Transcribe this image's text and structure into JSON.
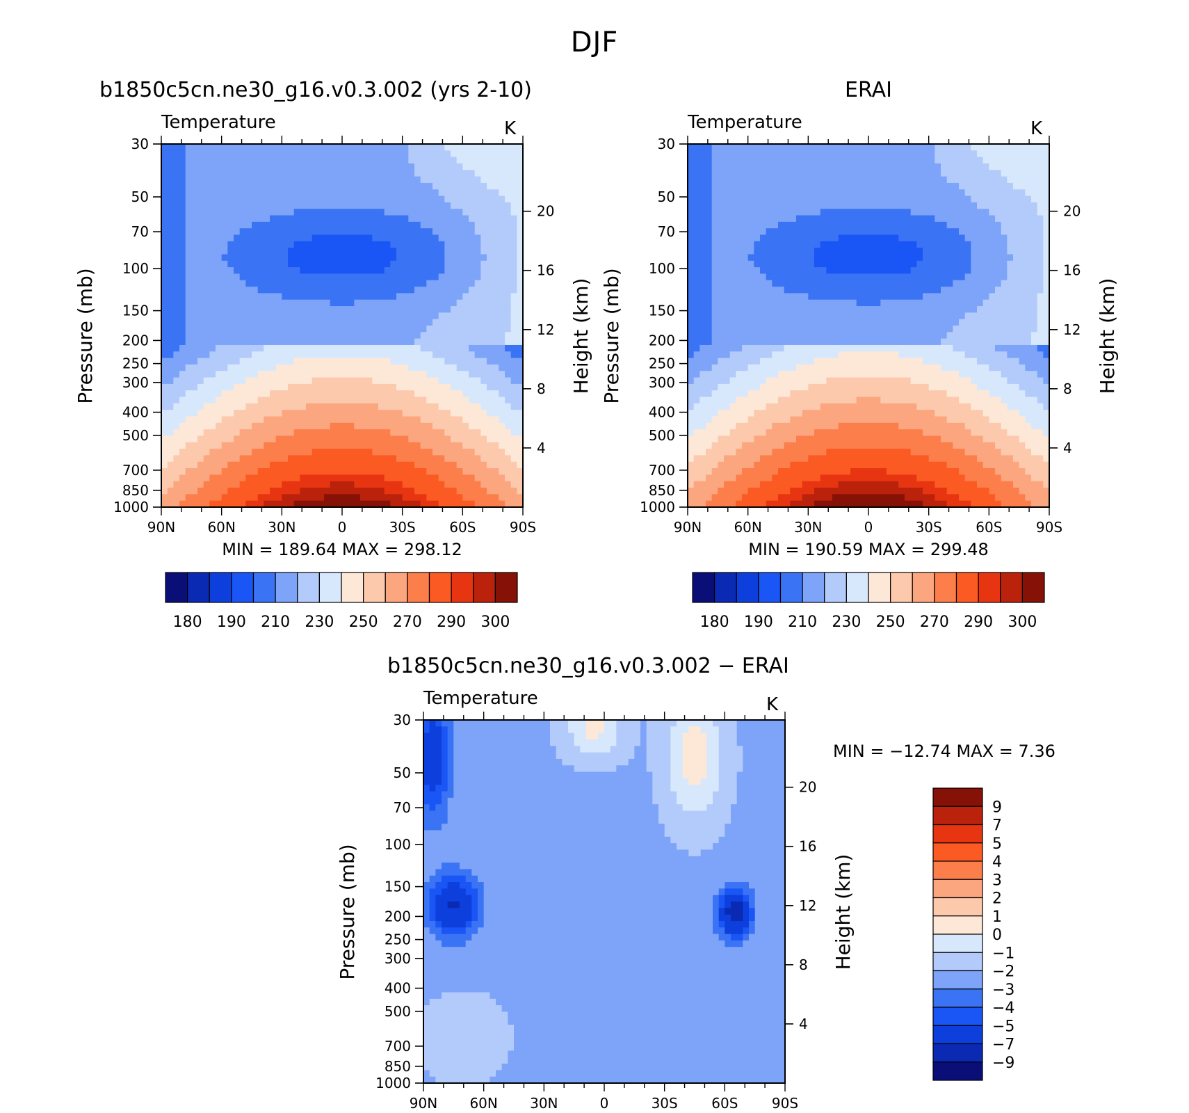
{
  "page_title": "DJF",
  "colors": {
    "model_levels": [
      "#0a0f78",
      "#0a2ab4",
      "#0c3fdc",
      "#1a55f5",
      "#3b73f5",
      "#7da4f9",
      "#b3cbfb",
      "#d8e8fc",
      "#fde8d8",
      "#fcc9ad",
      "#fca680",
      "#fc7e4a",
      "#fb5a23",
      "#e73512",
      "#bb220b",
      "#861106"
    ],
    "diff_levels": [
      "#0a0f78",
      "#0a2ab4",
      "#0c3fdc",
      "#1a55f5",
      "#3b73f5",
      "#7da4f9",
      "#b3cbfb",
      "#d8e8fc",
      "#fde8d8",
      "#fcc9ad",
      "#fca680",
      "#fc7e4a",
      "#fb5a23",
      "#e73512",
      "#bb220b",
      "#861106"
    ]
  },
  "chart_data": [
    {
      "id": "model",
      "type": "contour",
      "title": "b1850c5cn.ne30_g16.v0.3.002 (yrs 2-10)",
      "field_label": "Temperature",
      "units": "K",
      "xlabel": "",
      "ylabel": "Pressure (mb)",
      "ylabel_right": "Height (km)",
      "x_ticks": [
        "90N",
        "60N",
        "30N",
        "0",
        "30S",
        "60S",
        "90S"
      ],
      "y_ticks": [
        30,
        50,
        70,
        100,
        150,
        200,
        250,
        300,
        400,
        500,
        700,
        850,
        1000
      ],
      "y_right_ticks": [
        4,
        8,
        12,
        16,
        20
      ],
      "min_label": "MIN",
      "max_label": "MAX",
      "min": 189.64,
      "max": 298.12,
      "colorbar_ticks": [
        "180",
        "190",
        "210",
        "230",
        "250",
        "270",
        "290",
        "300"
      ]
    },
    {
      "id": "obs",
      "type": "contour",
      "title": "ERAI",
      "field_label": "Temperature",
      "units": "K",
      "xlabel": "",
      "ylabel": "Pressure (mb)",
      "ylabel_right": "Height (km)",
      "x_ticks": [
        "90N",
        "60N",
        "30N",
        "0",
        "30S",
        "60S",
        "90S"
      ],
      "y_ticks": [
        30,
        50,
        70,
        100,
        150,
        200,
        250,
        300,
        400,
        500,
        700,
        850,
        1000
      ],
      "y_right_ticks": [
        4,
        8,
        12,
        16,
        20
      ],
      "min_label": "MIN",
      "max_label": "MAX",
      "min": 190.59,
      "max": 299.48,
      "colorbar_ticks": [
        "180",
        "190",
        "210",
        "230",
        "250",
        "270",
        "290",
        "300"
      ]
    },
    {
      "id": "diff",
      "type": "contour",
      "title": "b1850c5cn.ne30_g16.v0.3.002 − ERAI",
      "field_label": "Temperature",
      "units": "K",
      "xlabel": "",
      "ylabel": "Pressure (mb)",
      "ylabel_right": "Height (km)",
      "x_ticks": [
        "90N",
        "60N",
        "30N",
        "0",
        "30S",
        "60S",
        "90S"
      ],
      "y_ticks": [
        30,
        50,
        70,
        100,
        150,
        200,
        250,
        300,
        400,
        500,
        700,
        850,
        1000
      ],
      "y_right_ticks": [
        4,
        8,
        12,
        16,
        20
      ],
      "min_label": "MIN",
      "max_label": "MAX",
      "min": -12.74,
      "max": 7.36,
      "colorbar_ticks": [
        "9",
        "7",
        "5",
        "4",
        "3",
        "2",
        "1",
        "0",
        "−1",
        "−2",
        "−3",
        "−4",
        "−5",
        "−7",
        "−9"
      ]
    }
  ]
}
